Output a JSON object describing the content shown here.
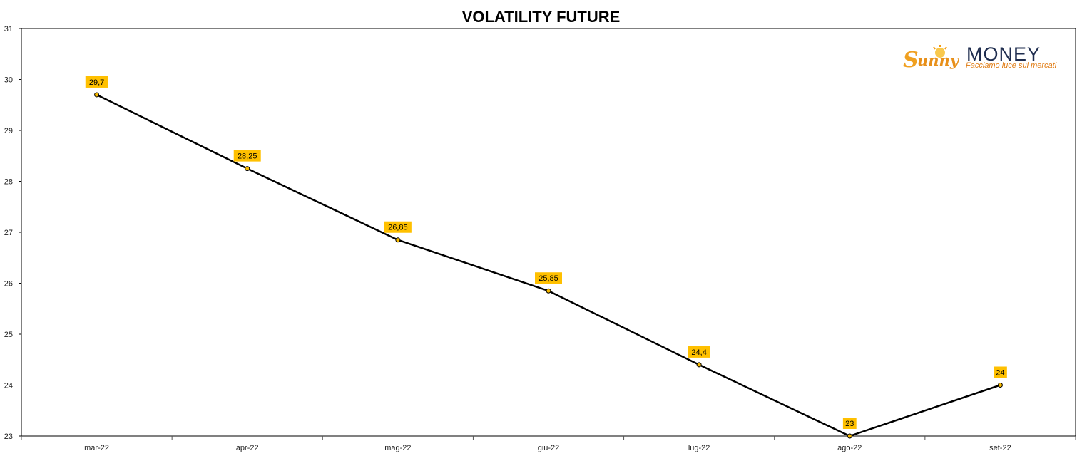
{
  "chart_data": {
    "type": "line",
    "title": "VOLATILITY FUTURE",
    "categories": [
      "mar-22",
      "apr-22",
      "mag-22",
      "giu-22",
      "lug-22",
      "ago-22",
      "set-22"
    ],
    "values": [
      29.7,
      28.25,
      26.85,
      25.85,
      24.4,
      23,
      24
    ],
    "data_labels": [
      "29,7",
      "28,25",
      "26,85",
      "25,85",
      "24,4",
      "23",
      "24"
    ],
    "y_ticks": [
      "23",
      "24",
      "25",
      "26",
      "27",
      "28",
      "29",
      "30",
      "31"
    ],
    "ylim": [
      23,
      31
    ],
    "grid": false,
    "legend": "none",
    "colors": {
      "line": "#000000",
      "marker_fill": "#f5b800",
      "label_bg": "#ffc000"
    }
  },
  "logo": {
    "brand_word": "MONEY",
    "script_word": "Sunny",
    "tagline": "Facciamo luce sui mercati",
    "colors": {
      "money": "#1f2d4f",
      "tagline": "#e07b12",
      "sunny": "#f0a020"
    }
  }
}
